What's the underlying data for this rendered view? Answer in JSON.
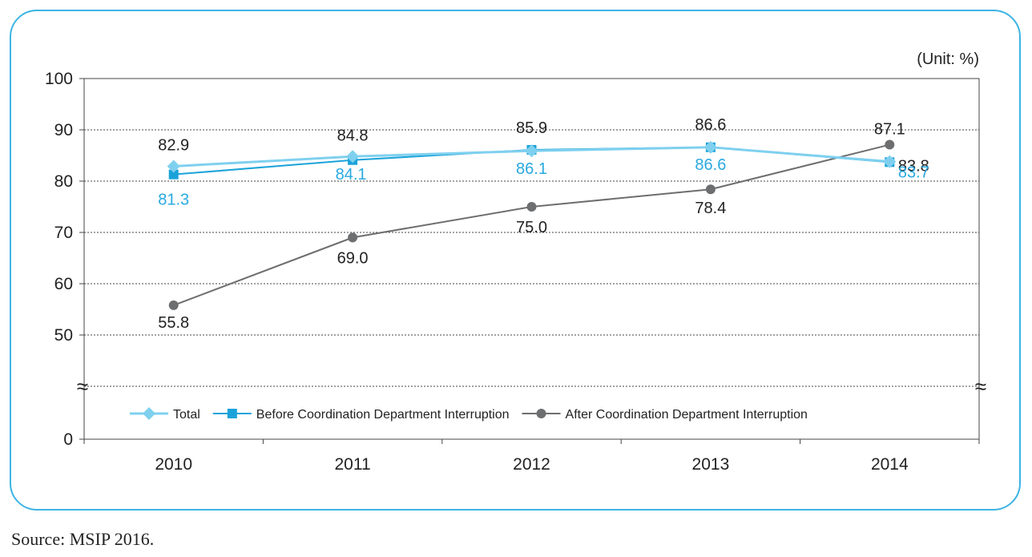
{
  "unit_label": "(Unit: %)",
  "source": "Source: MSIP 2016.",
  "colors": {
    "frame": "#3db4e4",
    "total": "#7fd0ef",
    "before": "#1ba3d9",
    "after": "#6d6e70",
    "before_label": "#29a9e0",
    "grid": "#444444"
  },
  "chart_data": {
    "type": "line",
    "categories": [
      "2010",
      "2011",
      "2012",
      "2013",
      "2014"
    ],
    "yticks": [
      0,
      50,
      60,
      70,
      80,
      90,
      100
    ],
    "axis_break": true,
    "ylim": [
      0,
      100
    ],
    "grid": true,
    "legend_position": "bottom-left",
    "series": [
      {
        "key": "total",
        "name": "Total",
        "marker": "diamond",
        "values": [
          82.9,
          84.8,
          85.9,
          86.6,
          83.8
        ],
        "labels": [
          "82.9",
          "84.8",
          "85.9",
          "86.6",
          "83.8"
        ]
      },
      {
        "key": "before",
        "name": "Before Coordination Department Interruption",
        "marker": "square",
        "values": [
          81.3,
          84.1,
          86.1,
          86.6,
          83.7
        ],
        "labels": [
          "81.3",
          "84.1",
          "86.1",
          "86.6",
          "83.7"
        ]
      },
      {
        "key": "after",
        "name": "After Coordination Department Interruption",
        "marker": "circle",
        "values": [
          55.8,
          69.0,
          75.0,
          78.4,
          87.1
        ],
        "labels": [
          "55.8",
          "69.0",
          "75.0",
          "78.4",
          "87.1"
        ]
      }
    ]
  }
}
